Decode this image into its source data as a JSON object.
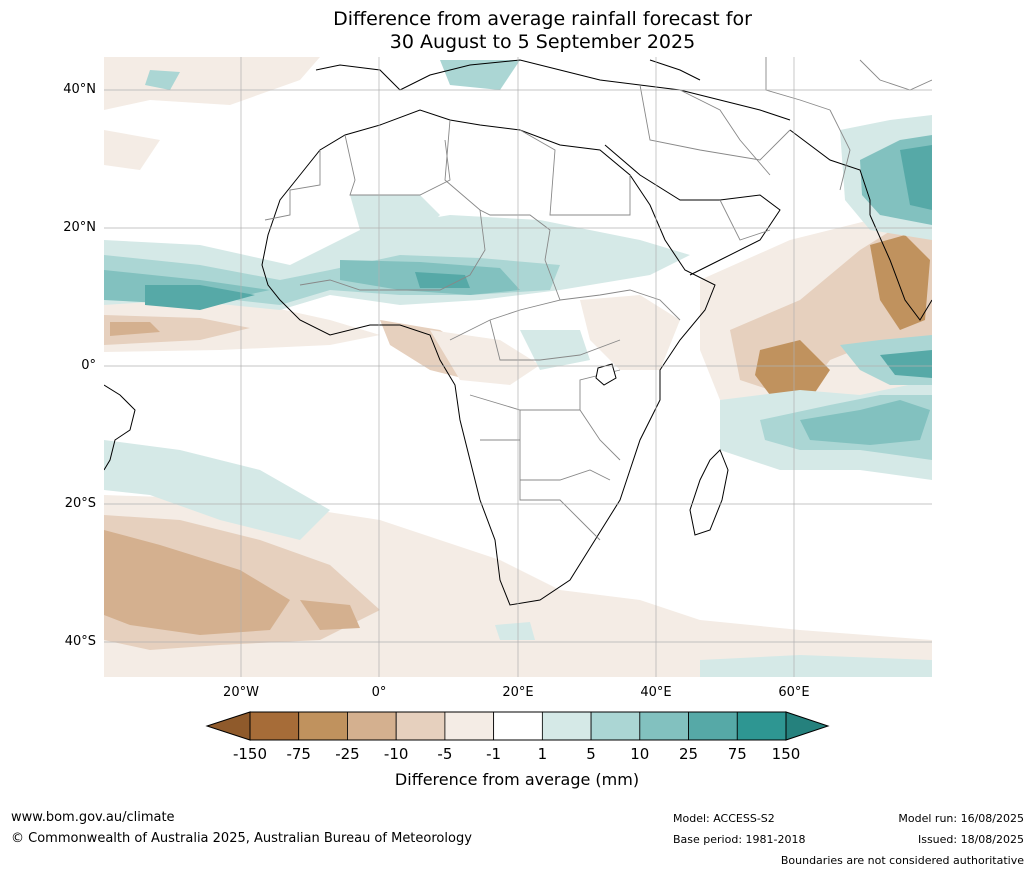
{
  "title": {
    "line1": "Difference from average rainfall forecast for",
    "line2": "30 August to 5 September 2025"
  },
  "map": {
    "lat_labels": [
      "40°N",
      "20°N",
      "0°",
      "20°S",
      "40°S"
    ],
    "lon_labels": [
      "20°W",
      "0°",
      "20°E",
      "40°E",
      "60°E"
    ],
    "extent": {
      "lon": [
        -40,
        80
      ],
      "lat": [
        -45,
        45
      ]
    }
  },
  "colorbar": {
    "ticks": [
      "-150",
      "-75",
      "-25",
      "-10",
      "-5",
      "-1",
      "1",
      "5",
      "10",
      "25",
      "75",
      "150"
    ],
    "colors": [
      "#a66c38",
      "#c0925e",
      "#d4b08f",
      "#e6d0be",
      "#f4ece5",
      "#ffffff",
      "#d5e9e7",
      "#abd6d4",
      "#82c1bf",
      "#56a9a7",
      "#2e9692"
    ],
    "under_color": "#8f5a2b",
    "over_color": "#25817d",
    "label": "Difference from average (mm)"
  },
  "footer": {
    "url": "www.bom.gov.au/climate",
    "copyright": "© Commonwealth of Australia 2025, Australian Bureau of Meteorology",
    "model": "Model: ACCESS-S2",
    "base_period": "Base period: 1981-2018",
    "model_run": "Model run: 16/08/2025",
    "issued": "Issued: 18/08/2025",
    "disclaimer": "Boundaries are not considered authoritative"
  }
}
